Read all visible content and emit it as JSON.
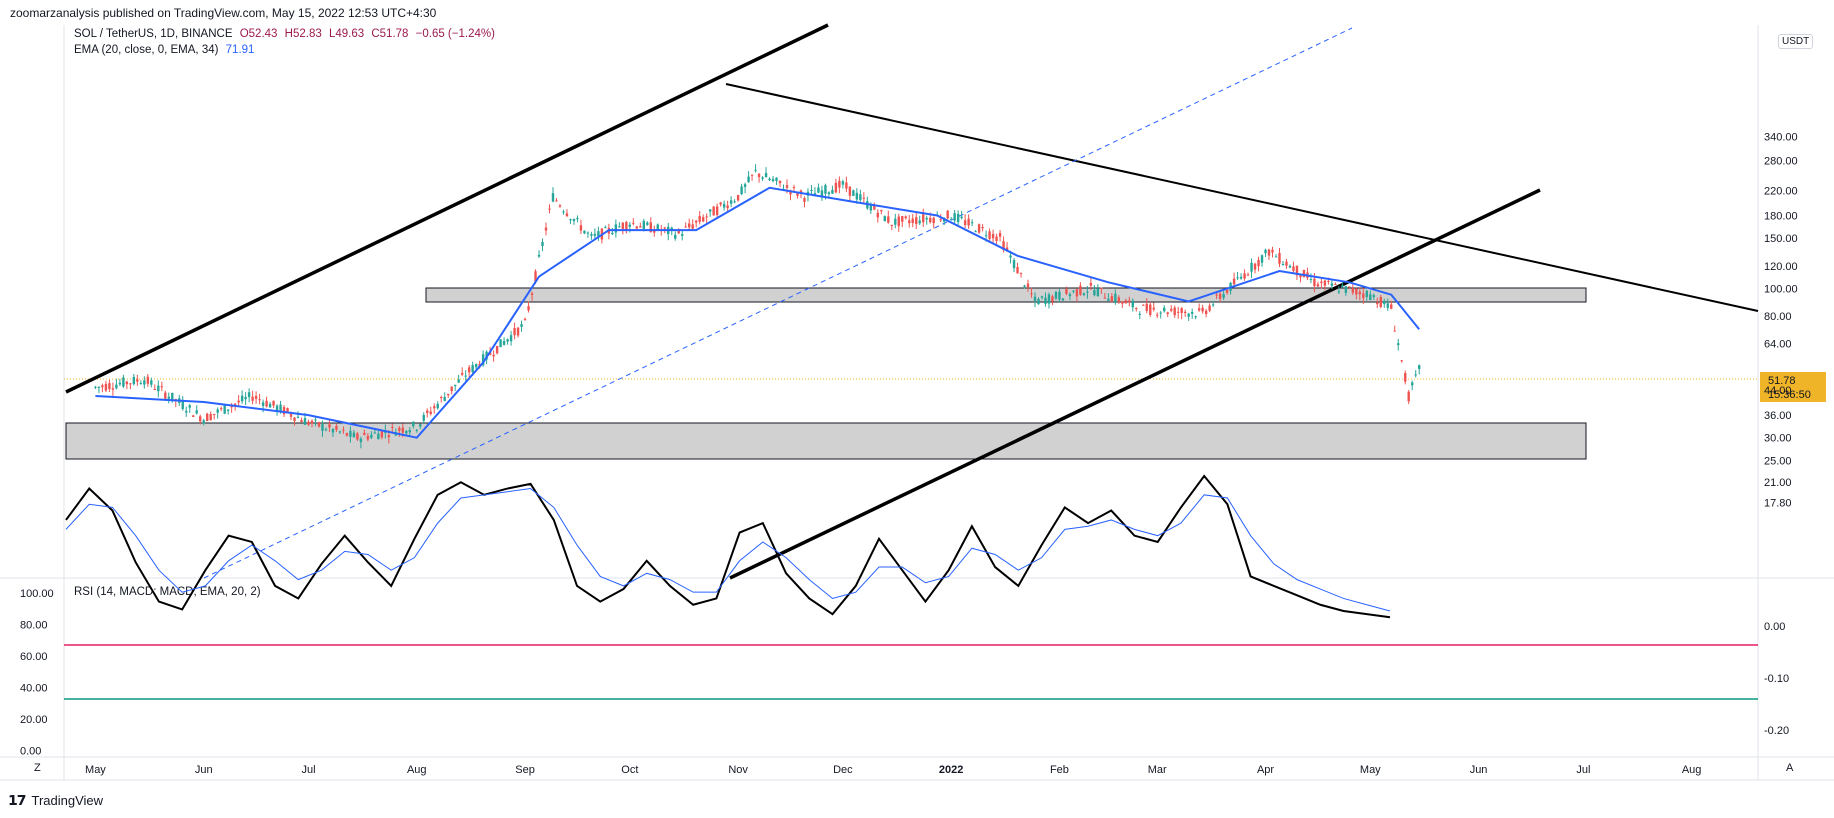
{
  "header": {
    "published": "zoomarzanalysis published on TradingView.com, May 15, 2022 12:53 UTC+4:30"
  },
  "legend": {
    "symbol": "SOL / TetherUS, 1D, BINANCE",
    "open": "O52.43",
    "high": "H52.83",
    "low": "L49.63",
    "close": "C51.78",
    "change": "−0.65 (−1.24%)",
    "ema_label": "EMA (20, close, 0, EMA, 34)",
    "ema_value": "71.91",
    "rsi_label": "RSI (14, MACD: MACD, EMA, 20, 2)"
  },
  "price_axis": {
    "currency": "USDT",
    "last_price": "51.78",
    "countdown": "15:36:50",
    "ticks": [
      "340.00",
      "280.00",
      "220.00",
      "180.00",
      "150.00",
      "120.00",
      "100.00",
      "80.00",
      "64.00",
      "44.00",
      "36.00",
      "30.00",
      "25.00",
      "21.00",
      "17.80"
    ]
  },
  "rsi_axis": {
    "left_ticks": [
      "100.00",
      "80.00",
      "60.00",
      "40.00",
      "20.00",
      "0.00"
    ],
    "right_ticks": [
      "0.00",
      "-0.10",
      "-0.20"
    ]
  },
  "time_axis": {
    "labels": [
      "May",
      "Jun",
      "Jul",
      "Aug",
      "Sep",
      "Oct",
      "Nov",
      "Dec",
      "2022",
      "Feb",
      "Mar",
      "Apr",
      "May",
      "Jun",
      "Jul",
      "Aug"
    ],
    "left_button": "Z",
    "right_button": "A"
  },
  "footer": {
    "brand": "TradingView"
  },
  "colors": {
    "up_candle": "#26a69a",
    "down_candle": "#ef5350",
    "ema": "#2962ff",
    "rsi_upper": "#e91e63",
    "rsi_lower": "#089981",
    "price_tag": "#f0b429"
  },
  "chart_data": {
    "type": "line",
    "title": "SOL / TetherUS, 1D, BINANCE",
    "y_scale": "log",
    "ylim": [
      17.8,
      340
    ],
    "series": [
      {
        "name": "SOL / TetherUS",
        "x": [
          "2021-05-01",
          "2021-05-15",
          "2021-06-01",
          "2021-06-15",
          "2021-07-01",
          "2021-07-15",
          "2021-08-01",
          "2021-08-15",
          "2021-09-01",
          "2021-09-09",
          "2021-09-20",
          "2021-10-01",
          "2021-10-15",
          "2021-11-01",
          "2021-11-06",
          "2021-11-20",
          "2021-12-01",
          "2021-12-15",
          "2022-01-01",
          "2022-01-15",
          "2022-01-25",
          "2022-02-10",
          "2022-02-24",
          "2022-03-14",
          "2022-04-02",
          "2022-04-15",
          "2022-05-01",
          "2022-05-07",
          "2022-05-12",
          "2022-05-15"
        ],
        "values": [
          45,
          48,
          35,
          42,
          34,
          30,
          33,
          50,
          75,
          210,
          150,
          170,
          155,
          210,
          255,
          210,
          230,
          170,
          180,
          150,
          90,
          100,
          85,
          82,
          135,
          105,
          95,
          85,
          42,
          51.78
        ]
      },
      {
        "name": "EMA (20, close, 0, EMA, 34)",
        "x": [
          "2021-05-01",
          "2021-06-01",
          "2021-07-01",
          "2021-08-01",
          "2021-08-20",
          "2021-09-05",
          "2021-09-25",
          "2021-10-20",
          "2021-11-10",
          "2021-12-05",
          "2021-12-28",
          "2022-01-20",
          "2022-02-15",
          "2022-03-10",
          "2022-04-05",
          "2022-04-25",
          "2022-05-07",
          "2022-05-15"
        ],
        "values": [
          42,
          40,
          36,
          30,
          55,
          110,
          160,
          160,
          225,
          200,
          180,
          130,
          105,
          90,
          115,
          105,
          95,
          71.91
        ]
      }
    ]
  }
}
